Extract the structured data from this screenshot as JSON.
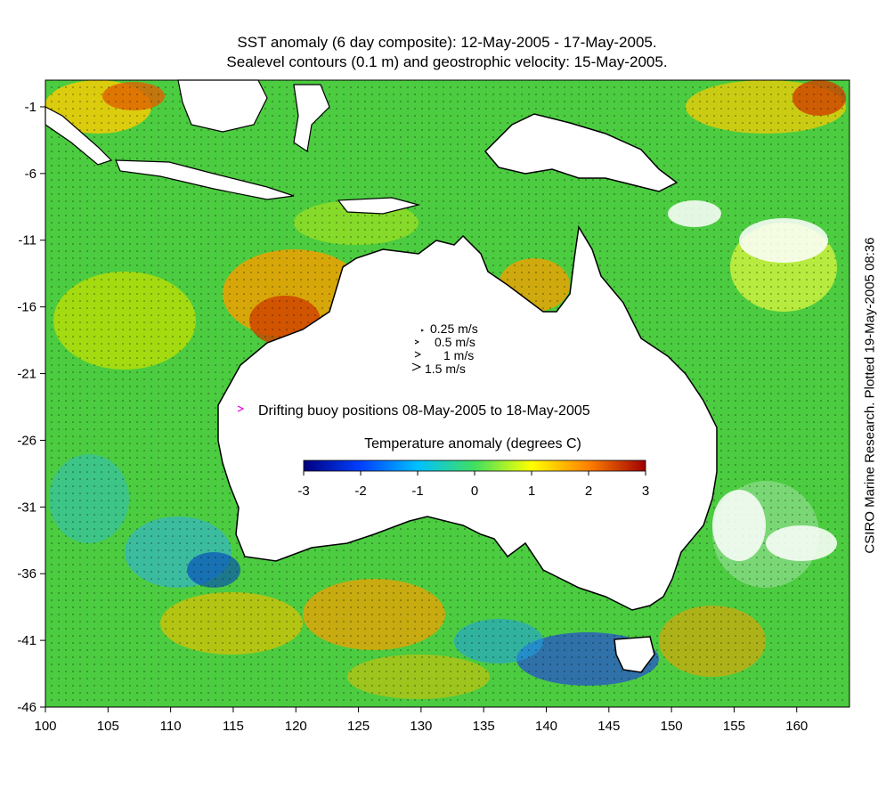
{
  "title_line1": "SST anomaly (6 day composite): 12-May-2005 - 17-May-2005.",
  "title_line2": "Sealevel contours (0.1 m) and geostrophic velocity: 15-May-2005.",
  "credit": "CSIRO Marine Research. Plotted 19-May-2005 08:36",
  "x_ticks": [
    "100",
    "105",
    "110",
    "115",
    "120",
    "125",
    "130",
    "135",
    "140",
    "145",
    "150",
    "155",
    "160"
  ],
  "y_ticks": [
    "-1",
    "-6",
    "-11",
    "-16",
    "-21",
    "-26",
    "-31",
    "-36",
    "-41",
    "-46"
  ],
  "velocity_key": [
    "0.25 m/s",
    "0.5 m/s",
    "1 m/s",
    "1.5 m/s"
  ],
  "buoy_legend": "Drifting buoy positions 08-May-2005 to 18-May-2005",
  "colorbar": {
    "title": "Temperature anomaly (degrees C)",
    "ticks": [
      "-3",
      "-2",
      "-1",
      "0",
      "1",
      "2",
      "3"
    ],
    "range": [
      -3,
      3
    ],
    "colors": [
      "#00007f",
      "#0040ff",
      "#00c0ff",
      "#40e060",
      "#ffff00",
      "#ff8000",
      "#a00000"
    ]
  },
  "map": {
    "lon_range": [
      100,
      164
    ],
    "lat_range": [
      -46,
      1
    ],
    "ocean_anomaly_color": "#4ccc40",
    "land_color": "#ffffff",
    "coast_color": "#000000",
    "buoy_color": "#e000e0"
  }
}
